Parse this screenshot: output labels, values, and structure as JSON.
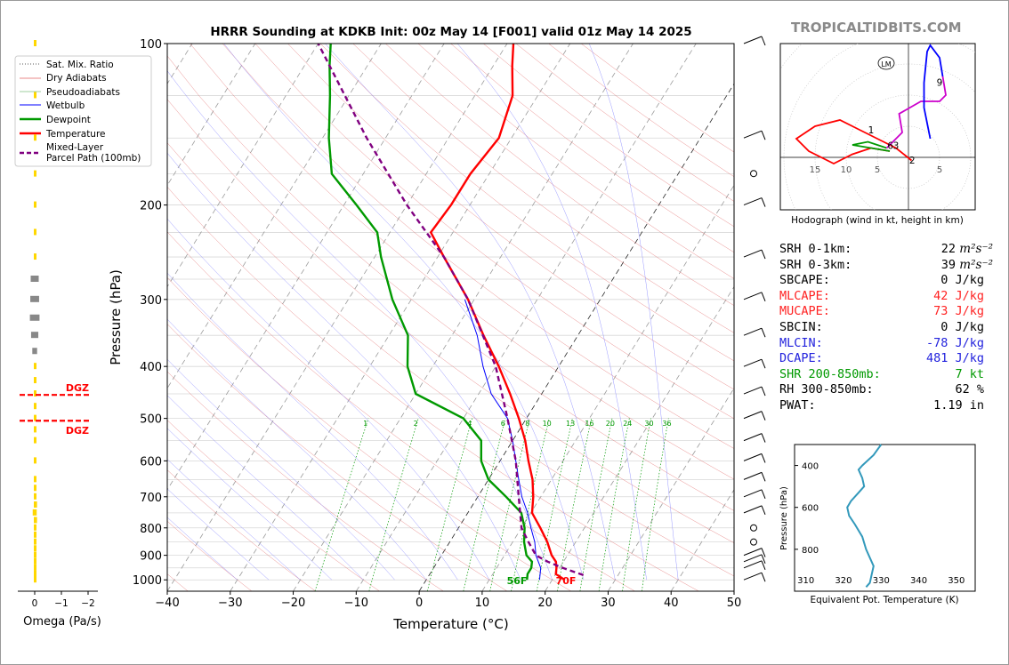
{
  "title": "HRRR Sounding at KDKB Init: 00z May 14 [F001] valid 01z May 14 2025",
  "brand": "TROPICALTIDBITS.COM",
  "chart_data": [
    {
      "type": "line",
      "name": "skew-t",
      "xlabel": "Temperature (°C)",
      "ylabel": "Pressure (hPa)",
      "xlim": [
        -40,
        50
      ],
      "ylim": [
        1050,
        100
      ],
      "y_scale": "log",
      "grid": true,
      "x_ticks": [
        "−40",
        "−30",
        "−20",
        "−10",
        "0",
        "10",
        "20",
        "30",
        "40",
        "50"
      ],
      "y_ticks": [
        "100",
        "200",
        "300",
        "400",
        "500",
        "600",
        "700",
        "800",
        "900",
        "1000"
      ],
      "legend": {
        "placement": "top-left",
        "entries": [
          "Sat. Mix. Ratio",
          "Dry Adiabats",
          "Pseudoadiabats",
          "Wetbulb",
          "Dewpoint",
          "Temperature",
          "Mixed-Layer",
          "Parcel Path (100mb)"
        ]
      },
      "mix_ratio_labels": [
        "1",
        "2",
        "4",
        "6",
        "8",
        "10",
        "13",
        "16",
        "20",
        "24",
        "30",
        "36"
      ],
      "surface_labels": {
        "dewpoint": "56F",
        "temperature": "70F"
      },
      "colors": {
        "temperature": "#ff0000",
        "dewpoint": "#009900",
        "wetbulb": "#0000ff",
        "parcel": "#800080",
        "dry": "#e06060",
        "moist": "#8080ff",
        "mix": "#009900"
      },
      "series": [
        {
          "name": "Temperature",
          "points": [
            [
              1000,
              22.0
            ],
            [
              975,
              20.0
            ],
            [
              950,
              19.5
            ],
            [
              925,
              18.8
            ],
            [
              900,
              17.5
            ],
            [
              850,
              15.5
            ],
            [
              800,
              13.0
            ],
            [
              750,
              10.2
            ],
            [
              700,
              8.8
            ],
            [
              650,
              7.0
            ],
            [
              600,
              4.5
            ],
            [
              550,
              2.0
            ],
            [
              500,
              -1.2
            ],
            [
              450,
              -5.0
            ],
            [
              400,
              -9.5
            ],
            [
              350,
              -15.0
            ],
            [
              300,
              -21.0
            ],
            [
              250,
              -29.0
            ],
            [
              225,
              -33.5
            ],
            [
              200,
              -33.0
            ],
            [
              175,
              -33.0
            ],
            [
              150,
              -32.0
            ],
            [
              125,
              -34.0
            ],
            [
              110,
              -37.0
            ],
            [
              100,
              -39.0
            ]
          ]
        },
        {
          "name": "Dewpoint",
          "points": [
            [
              1000,
              16.0
            ],
            [
              975,
              15.5
            ],
            [
              950,
              15.5
            ],
            [
              925,
              15.0
            ],
            [
              900,
              13.5
            ],
            [
              850,
              11.8
            ],
            [
              800,
              10.5
            ],
            [
              750,
              8.5
            ],
            [
              700,
              4.5
            ],
            [
              650,
              0.0
            ],
            [
              600,
              -3.0
            ],
            [
              550,
              -5.0
            ],
            [
              500,
              -10.0
            ],
            [
              450,
              -20.0
            ],
            [
              400,
              -24.0
            ],
            [
              350,
              -27.0
            ],
            [
              300,
              -33.0
            ],
            [
              250,
              -39.0
            ],
            [
              225,
              -42.0
            ],
            [
              200,
              -48.0
            ],
            [
              175,
              -55.0
            ],
            [
              150,
              -59.0
            ],
            [
              125,
              -63.0
            ],
            [
              110,
              -66.0
            ],
            [
              100,
              -68.0
            ]
          ]
        },
        {
          "name": "Wetbulb",
          "points": [
            [
              1000,
              18.0
            ],
            [
              950,
              17.0
            ],
            [
              900,
              15.0
            ],
            [
              850,
              13.5
            ],
            [
              800,
              11.5
            ],
            [
              750,
              9.5
            ],
            [
              700,
              7.0
            ],
            [
              650,
              4.8
            ],
            [
              600,
              2.5
            ],
            [
              550,
              0.0
            ],
            [
              500,
              -3.0
            ],
            [
              450,
              -8.0
            ],
            [
              400,
              -12.0
            ],
            [
              350,
              -16.0
            ],
            [
              300,
              -21.5
            ]
          ]
        },
        {
          "name": "Mixed-Layer Parcel Path (100mb)",
          "points": [
            [
              980,
              24.5
            ],
            [
              950,
              20.5
            ],
            [
              925,
              17.5
            ],
            [
              900,
              15.0
            ],
            [
              850,
              12.5
            ],
            [
              800,
              10.0
            ],
            [
              700,
              6.5
            ],
            [
              600,
              2.5
            ],
            [
              500,
              -3.0
            ],
            [
              400,
              -10.0
            ],
            [
              300,
              -21.0
            ],
            [
              250,
              -29.0
            ],
            [
              200,
              -40.0
            ],
            [
              150,
              -53.0
            ],
            [
              100,
              -70.0
            ]
          ]
        }
      ]
    },
    {
      "type": "bar",
      "name": "omega",
      "xlabel": "Omega (Pa/s)",
      "x_ticks": [
        "0",
        "−1",
        "−2"
      ],
      "dgz_label": "DGZ",
      "dgz_levels": [
        505,
        452
      ],
      "values": [
        [
          100,
          0.05
        ],
        [
          125,
          0.08
        ],
        [
          150,
          0.06
        ],
        [
          175,
          0.04
        ],
        [
          200,
          0.1
        ],
        [
          225,
          0.12
        ],
        [
          250,
          -0.05
        ],
        [
          275,
          0.5
        ],
        [
          300,
          0.55
        ],
        [
          325,
          0.6
        ],
        [
          350,
          0.45
        ],
        [
          375,
          0.3
        ],
        [
          400,
          0.05
        ],
        [
          425,
          0.1
        ],
        [
          450,
          0.1
        ],
        [
          475,
          0.12
        ],
        [
          500,
          0.1
        ],
        [
          525,
          0.05
        ],
        [
          550,
          0.02
        ],
        [
          600,
          0.02
        ],
        [
          650,
          0.05
        ],
        [
          675,
          0.1
        ],
        [
          700,
          0.15
        ],
        [
          725,
          0.2
        ],
        [
          750,
          0.25
        ],
        [
          775,
          0.2
        ],
        [
          800,
          0.15
        ],
        [
          825,
          0.05
        ],
        [
          850,
          -0.05
        ],
        [
          875,
          -0.05
        ],
        [
          900,
          0.02
        ],
        [
          925,
          0.05
        ],
        [
          950,
          0.08
        ],
        [
          975,
          0.1
        ],
        [
          1000,
          0.05
        ]
      ]
    },
    {
      "type": "line",
      "name": "hodograph",
      "caption": "Hodograph (wind in kt, height in km)",
      "ring_labels": [
        "15",
        "10",
        "5",
        "5"
      ],
      "height_labels": [
        "1",
        "2",
        "3",
        "6",
        "9"
      ],
      "storm_motion_label": "LM",
      "series": [
        {
          "name": "0-1km",
          "color": "#ff0000",
          "points": [
            [
              0.5,
              -0.5
            ],
            [
              -2,
              1.5
            ],
            [
              -5,
              3
            ],
            [
              -8,
              4.5
            ],
            [
              -11,
              6
            ],
            [
              -15,
              5
            ],
            [
              -18,
              3
            ],
            [
              -16,
              1
            ],
            [
              -12,
              -1
            ],
            [
              -9,
              0.5
            ],
            [
              -6,
              1.5
            ],
            [
              -3,
              1
            ]
          ]
        },
        {
          "name": "1-3km",
          "color": "#009900",
          "points": [
            [
              -3,
              1
            ],
            [
              -6,
              1.5
            ],
            [
              -9,
              2
            ],
            [
              -6.5,
              2.5
            ],
            [
              -5,
              2
            ],
            [
              -3.5,
              1.5
            ]
          ]
        },
        {
          "name": "3-6km",
          "color": "#cc00cc",
          "points": [
            [
              -3.5,
              1.5
            ],
            [
              -1,
              4
            ],
            [
              -1.5,
              7
            ],
            [
              2,
              9
            ],
            [
              5,
              9
            ],
            [
              6,
              10
            ],
            [
              5.5,
              13
            ]
          ]
        },
        {
          "name": "6-9km",
          "color": "#0000ff",
          "points": [
            [
              5.5,
              13
            ],
            [
              5,
              16
            ],
            [
              3.5,
              18
            ],
            [
              3,
              17
            ],
            [
              2.5,
              12
            ],
            [
              2.5,
              8
            ],
            [
              3.5,
              3
            ]
          ]
        }
      ]
    },
    {
      "type": "line",
      "name": "theta-e",
      "xlabel": "Equivalent Pot. Temperature (K)",
      "ylabel": "Pressure (hPa)",
      "x_ticks": [
        "310",
        "320",
        "330",
        "340",
        "350"
      ],
      "y_ticks": [
        "400",
        "600",
        "800"
      ],
      "color": "#3399bb",
      "points": [
        [
          330,
          300
        ],
        [
          328,
          350
        ],
        [
          325,
          400
        ],
        [
          324,
          420
        ],
        [
          325,
          460
        ],
        [
          325.5,
          500
        ],
        [
          324,
          530
        ],
        [
          322,
          570
        ],
        [
          321,
          600
        ],
        [
          321.5,
          640
        ],
        [
          323,
          680
        ],
        [
          325,
          740
        ],
        [
          326,
          800
        ],
        [
          327,
          840
        ],
        [
          328,
          880
        ],
        [
          327.5,
          920
        ],
        [
          327,
          960
        ],
        [
          326,
          980
        ]
      ]
    }
  ],
  "params": [
    {
      "label": "SRH 0-1km:",
      "value": "22",
      "unit": "m²s⁻²",
      "color": "#000000"
    },
    {
      "label": "SRH 0-3km:",
      "value": "39",
      "unit": "m²s⁻²",
      "color": "#000000"
    },
    {
      "label": "SBCAPE:",
      "value": "0 J/kg",
      "unit": "",
      "color": "#000000"
    },
    {
      "label": "MLCAPE:",
      "value": "42 J/kg",
      "unit": "",
      "color": "#ff2222"
    },
    {
      "label": "MUCAPE:",
      "value": "73 J/kg",
      "unit": "",
      "color": "#ff2222"
    },
    {
      "label": "SBCIN:",
      "value": "0 J/kg",
      "unit": "",
      "color": "#000000"
    },
    {
      "label": "MLCIN:",
      "value": "-78 J/kg",
      "unit": "",
      "color": "#2222dd"
    },
    {
      "label": "DCAPE:",
      "value": "481 J/kg",
      "unit": "",
      "color": "#2222dd"
    },
    {
      "label": "SHR 200-850mb:",
      "value": "7 kt",
      "unit": "",
      "color": "#009900"
    },
    {
      "label": "RH 300-850mb:",
      "value": "62 %",
      "unit": "",
      "color": "#000000"
    },
    {
      "label": "PWAT:",
      "value": "1.19 in",
      "unit": "",
      "color": "#000000"
    }
  ]
}
